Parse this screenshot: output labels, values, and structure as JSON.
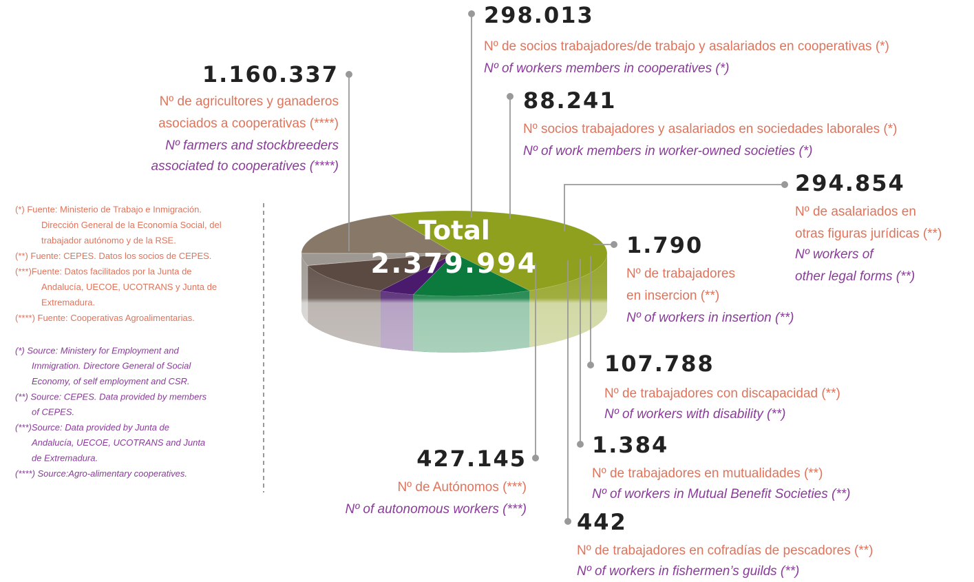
{
  "chart_data": {
    "type": "pie",
    "total": {
      "label": "Total",
      "value": 2379994,
      "value_label": "2.379.994"
    },
    "values": [
      1160337,
      298013,
      88241,
      294854,
      1790,
      107788,
      1384,
      442,
      427145
    ],
    "value_labels": [
      "1.160.337",
      "298.013",
      "88.241",
      "294.854",
      "1.790",
      "107.788",
      "1.384",
      "442",
      "427.145"
    ],
    "colors": [
      "#8fa01e",
      "#0b7a3c",
      "#4a1a6c",
      "#5a4a42",
      "#c8848c",
      "#9e9892",
      "#c9b25a",
      "#e09a58",
      "#877868"
    ],
    "labels_es": [
      [
        "Nº de agricultores y ganaderos",
        "asociados a cooperativas (****)"
      ],
      [
        "Nº de socios trabajadores/de trabajo y asalariados en cooperativas (*)"
      ],
      [
        "Nº socios trabajadores y asalariados en sociedades laborales (*)"
      ],
      [
        "Nº de asalariados en",
        "otras figuras jurídicas (**)"
      ],
      [
        "Nº de trabajadores",
        "en insercion (**)"
      ],
      [
        "Nº de trabajadores con discapacidad (**)"
      ],
      [
        "Nº de trabajadores en mutualidades (**)"
      ],
      [
        "Nº de trabajadores en cofradías de pescadores (**)"
      ],
      [
        "Nº de Autónomos (***)"
      ]
    ],
    "labels_en": [
      [
        "Nº farmers and stockbreeders",
        "associated to cooperatives (****)"
      ],
      [
        "Nº of workers members in cooperatives (*)"
      ],
      [
        "Nº of work members in worker-owned societies (*)"
      ],
      [
        "Nº workers of",
        "other legal forms (**)"
      ],
      [
        "Nº of workers in insertion (**)"
      ],
      [
        "Nº of workers with disability (**)"
      ],
      [
        "Nº of workers in Mutual Benefit Societies (**)"
      ],
      [
        "Nº of workers in fishermen’s guilds (**)"
      ],
      [
        "Nº of autonomous workers (***)"
      ]
    ],
    "footnotes_es": [
      "(*) Fuente: Ministerio de Trabajo e Inmigración.",
      "Dirección General de la Economía Social, del",
      "trabajador autónomo y de la RSE.",
      "(**) Fuente: CEPES. Datos  los socios de CEPES.",
      "(***)Fuente: Datos facilitados por la Junta de",
      "Andalucía, UECOE, UCOTRANS y Junta de",
      "Extremadura.",
      "(****) Fuente: Cooperativas Agroalimentarias."
    ],
    "footnotes_en": [
      "(*) Source: Ministery for Employment and",
      "Immigration. Directore General of  Social",
      "Economy, of self employment and CSR.",
      "(**) Source: CEPES. Data provided by members",
      "of CEPES.",
      "(***)Source: Data provided by Junta de",
      "Andalucía, UECOE, UCOTRANS and Junta",
      "de Extremadura.",
      "(****) Source:Agro-alimentary cooperatives."
    ]
  }
}
